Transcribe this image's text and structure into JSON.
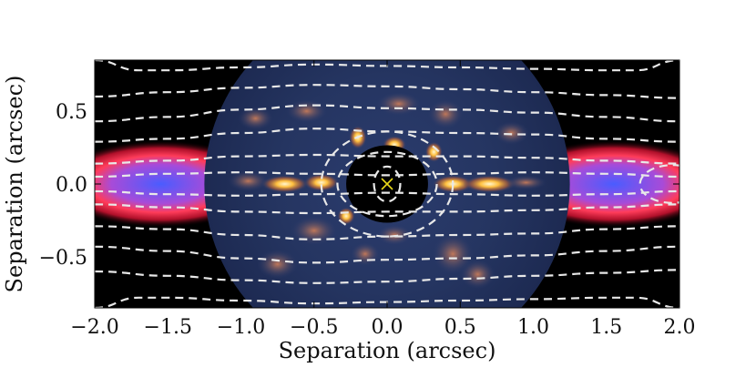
{
  "chart_data": {
    "type": "heatmap",
    "title": "",
    "xlabel": "Separation (arcsec)",
    "ylabel": "Separation (arcsec)",
    "xlim": [
      -2.0,
      2.0
    ],
    "ylim": [
      -0.85,
      0.85
    ],
    "x_ticks": [
      -2.0,
      -1.5,
      -1.0,
      -0.5,
      0.0,
      0.5,
      1.0,
      1.5,
      2.0
    ],
    "x_tick_labels": [
      "−2.0",
      "−1.5",
      "−1.0",
      "−0.5",
      "0.0",
      "0.5",
      "1.0",
      "1.5",
      "2.0"
    ],
    "y_ticks": [
      0.5,
      0.0,
      -0.5
    ],
    "y_tick_labels": [
      "0.5",
      "0.0",
      "−0.5"
    ],
    "grid": false,
    "star_marker": {
      "x": 0.0,
      "y": 0.0,
      "symbol": "×",
      "color": "#e8d81a"
    },
    "inner_image_radius_arcsec": 1.25,
    "mask_radius_arcsec": 0.28,
    "outer_model_colormap": [
      "#000000",
      "#7a0016",
      "#e8203a",
      "#ff3c5a",
      "#a84bd8",
      "#4a5cff"
    ],
    "inner_image_colormap": [
      "#0d1a3c",
      "#2a3e70",
      "#8a5a6a",
      "#ffb020",
      "#fff2c0"
    ],
    "contour_style": {
      "color": "#e8e8e8",
      "dash": "dashed"
    },
    "contours": [
      {
        "x": [
          -2.0,
          -1.5,
          -1.0,
          -0.5,
          0.0,
          0.5,
          1.0,
          1.5,
          2.0
        ],
        "y": [
          0.05,
          0.07,
          0.08,
          0.07,
          0.06,
          0.07,
          0.08,
          0.07,
          0.05
        ]
      },
      {
        "x": [
          -2.0,
          -1.5,
          -1.0,
          -0.5,
          0.0,
          0.5,
          1.0,
          1.5,
          2.0
        ],
        "y": [
          0.14,
          0.16,
          0.19,
          0.2,
          0.19,
          0.19,
          0.18,
          0.16,
          0.14
        ]
      },
      {
        "x": [
          -2.0,
          -1.5,
          -1.0,
          -0.5,
          0.0,
          0.5,
          1.0,
          1.5,
          2.0
        ],
        "y": [
          0.29,
          0.31,
          0.35,
          0.38,
          0.36,
          0.35,
          0.34,
          0.31,
          0.29
        ]
      },
      {
        "x": [
          -2.0,
          -1.5,
          -1.0,
          -0.5,
          0.0,
          0.5,
          1.0,
          1.5,
          2.0
        ],
        "y": [
          0.43,
          0.46,
          0.51,
          0.54,
          0.52,
          0.51,
          0.49,
          0.46,
          0.43
        ]
      },
      {
        "x": [
          -2.0,
          -1.5,
          -1.0,
          -0.5,
          0.0,
          0.5,
          1.0,
          1.5,
          2.0
        ],
        "y": [
          0.6,
          0.63,
          0.66,
          0.68,
          0.67,
          0.65,
          0.63,
          0.61,
          0.59
        ]
      },
      {
        "x": [
          -2.0,
          -1.7,
          -1.5,
          -1.0,
          -0.5,
          0.0,
          0.5,
          1.0,
          1.5,
          1.7,
          2.0
        ],
        "y": [
          0.85,
          0.78,
          0.78,
          0.8,
          0.82,
          0.81,
          0.8,
          0.79,
          0.78,
          0.78,
          0.85
        ]
      },
      {
        "x": [
          -2.0,
          -1.5,
          -1.0,
          -0.5,
          0.0,
          0.5,
          1.0,
          1.5,
          2.0
        ],
        "y": [
          -0.05,
          -0.07,
          -0.08,
          -0.07,
          -0.06,
          -0.07,
          -0.08,
          -0.07,
          -0.05
        ]
      },
      {
        "x": [
          -2.0,
          -1.5,
          -1.0,
          -0.5,
          0.0,
          0.5,
          1.0,
          1.5,
          2.0
        ],
        "y": [
          -0.14,
          -0.16,
          -0.19,
          -0.2,
          -0.19,
          -0.19,
          -0.18,
          -0.16,
          -0.14
        ]
      },
      {
        "x": [
          -2.0,
          -1.5,
          -1.0,
          -0.5,
          0.0,
          0.5,
          1.0,
          1.5,
          2.0
        ],
        "y": [
          -0.29,
          -0.31,
          -0.35,
          -0.38,
          -0.36,
          -0.35,
          -0.34,
          -0.31,
          -0.29
        ]
      },
      {
        "x": [
          -2.0,
          -1.5,
          -1.0,
          -0.5,
          0.0,
          0.5,
          1.0,
          1.5,
          2.0
        ],
        "y": [
          -0.43,
          -0.46,
          -0.51,
          -0.54,
          -0.52,
          -0.51,
          -0.49,
          -0.46,
          -0.43
        ]
      },
      {
        "x": [
          -2.0,
          -1.5,
          -1.0,
          -0.5,
          0.0,
          0.5,
          1.0,
          1.5,
          2.0
        ],
        "y": [
          -0.6,
          -0.63,
          -0.66,
          -0.68,
          -0.67,
          -0.65,
          -0.63,
          -0.61,
          -0.59
        ]
      },
      {
        "x": [
          -2.0,
          -1.7,
          -1.5,
          -1.0,
          -0.5,
          0.0,
          0.5,
          1.0,
          1.5,
          1.7,
          2.0
        ],
        "y": [
          -0.85,
          -0.78,
          -0.78,
          -0.8,
          -0.82,
          -0.81,
          -0.8,
          -0.79,
          -0.78,
          -0.78,
          -0.85
        ]
      }
    ],
    "closed_contours": [
      {
        "cx": 0.0,
        "cy": 0.0,
        "rx": 0.09,
        "ry": 0.12
      },
      {
        "cx": 0.0,
        "cy": 0.0,
        "rx": 0.34,
        "ry": 0.22
      },
      {
        "cx": 0.0,
        "cy": 0.0,
        "rx": 0.45,
        "ry": 0.36
      },
      {
        "cx": 1.95,
        "cy": 0.0,
        "rx": 0.22,
        "ry": 0.13
      }
    ]
  }
}
